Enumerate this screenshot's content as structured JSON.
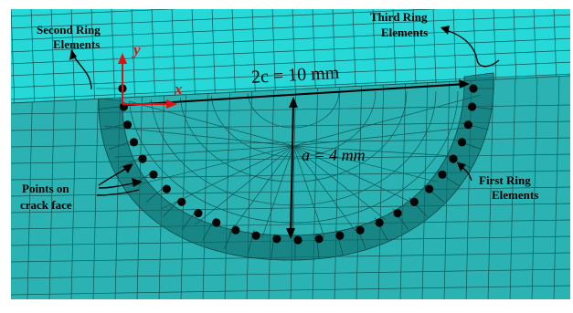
{
  "labels": {
    "second_ring": [
      "Second Ring",
      "Elements"
    ],
    "third_ring": [
      "Third Ring",
      "Elements"
    ],
    "first_ring": [
      "First Ring",
      "Elements"
    ],
    "points": [
      "Points on",
      "crack face"
    ],
    "axis_x": "x",
    "axis_y": "y",
    "width": "2c = 10 mm",
    "depth": "a = 4 mm"
  },
  "crack_front_point_count": 27,
  "colors": {
    "mesh_top": "#27d8d8",
    "mesh_bottom": "#2bb3b3",
    "mesh_line": "#0f5555",
    "ring_band": "#0f6b6b",
    "axis": "#e01010",
    "points": "#050505"
  }
}
